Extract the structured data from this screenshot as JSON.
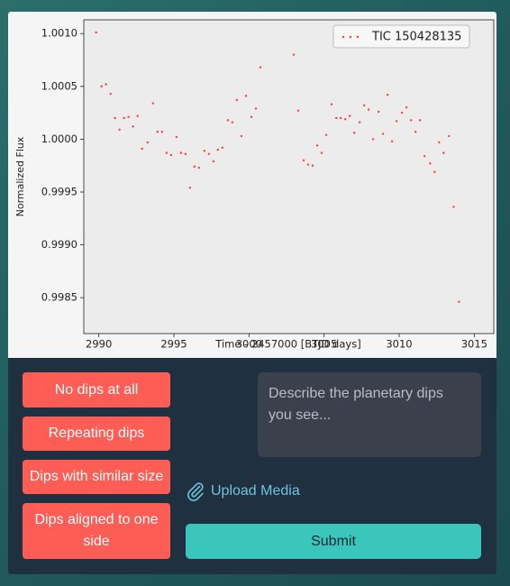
{
  "chart_data": {
    "type": "scatter",
    "xlabel": "Time - 2457000 [BTJD days]",
    "ylabel": "Normalized Flux",
    "x": [
      2989.82,
      2990.18,
      2990.48,
      2990.78,
      2991.08,
      2991.38,
      2991.68,
      2991.98,
      2992.28,
      2992.58,
      2992.88,
      2993.25,
      2993.61,
      2993.91,
      2994.21,
      2994.51,
      2994.81,
      2995.17,
      2995.47,
      2995.77,
      2996.07,
      2996.37,
      2996.67,
      2997.03,
      2997.33,
      2997.63,
      2997.93,
      2998.23,
      2998.59,
      2998.89,
      2999.19,
      2999.5,
      2999.8,
      3000.16,
      3000.46,
      3000.76,
      3002.98,
      3003.28,
      3003.64,
      3003.94,
      3004.24,
      3004.54,
      3004.84,
      3005.14,
      3005.5,
      3005.81,
      3006.11,
      3006.41,
      3006.71,
      3007.01,
      3007.37,
      3007.67,
      3007.97,
      3008.27,
      3008.63,
      3008.93,
      3009.23,
      3009.53,
      3009.83,
      3010.19,
      3010.49,
      3010.79,
      3011.09,
      3011.39,
      3011.69,
      3012.06,
      3012.36,
      3012.66,
      3012.96,
      3013.32,
      3013.62,
      3013.98
    ],
    "series": [
      {
        "name": "TIC 150428135",
        "color": "#ff3b3b",
        "values": [
          1.00101,
          1.0005,
          1.00052,
          1.00043,
          1.0002,
          1.00009,
          1.0002,
          1.00021,
          1.00012,
          1.00022,
          0.99991,
          0.99997,
          1.00034,
          1.00007,
          1.00007,
          0.99987,
          0.99985,
          1.00002,
          0.99987,
          0.99986,
          0.99954,
          0.99974,
          0.99973,
          0.99989,
          0.99986,
          0.99979,
          0.9999,
          0.99992,
          1.00018,
          1.00016,
          1.00037,
          1.00003,
          1.00041,
          1.00021,
          1.00029,
          1.00068,
          1.0008,
          1.00027,
          0.9998,
          0.99976,
          0.99975,
          0.99994,
          0.99987,
          1.00004,
          1.00033,
          1.0002,
          1.0002,
          1.00019,
          1.00022,
          1.00006,
          1.00016,
          1.00032,
          1.00028,
          1.0,
          1.00026,
          1.00005,
          1.00042,
          0.99998,
          1.00017,
          1.00025,
          1.0003,
          1.00018,
          1.00007,
          1.00018,
          0.99984,
          0.99977,
          0.99969,
          0.99997,
          0.99987,
          1.00003,
          0.99936,
          0.99846
        ]
      }
    ],
    "xlim": [
      2989,
      3016.3
    ],
    "ylim": [
      0.99816,
      1.00113
    ],
    "xticks": [
      2990,
      2995,
      3000,
      3005,
      3010,
      3015
    ],
    "yticks": [
      {
        "value": 1.001,
        "label": "1.0010"
      },
      {
        "value": 1.0005,
        "label": "1.0005"
      },
      {
        "value": 1.0,
        "label": "1.0000"
      },
      {
        "value": 0.9995,
        "label": "0.9995"
      },
      {
        "value": 0.999,
        "label": "0.9990"
      },
      {
        "value": 0.9985,
        "label": "0.9985"
      }
    ],
    "legend": "upper right"
  },
  "buttons": [
    "No dips at all",
    "Repeating dips",
    "Dips with similar size",
    "Dips aligned to one side"
  ],
  "description_placeholder": "Describe the planetary dips you see...",
  "upload": "Upload Media",
  "submit": "Submit"
}
